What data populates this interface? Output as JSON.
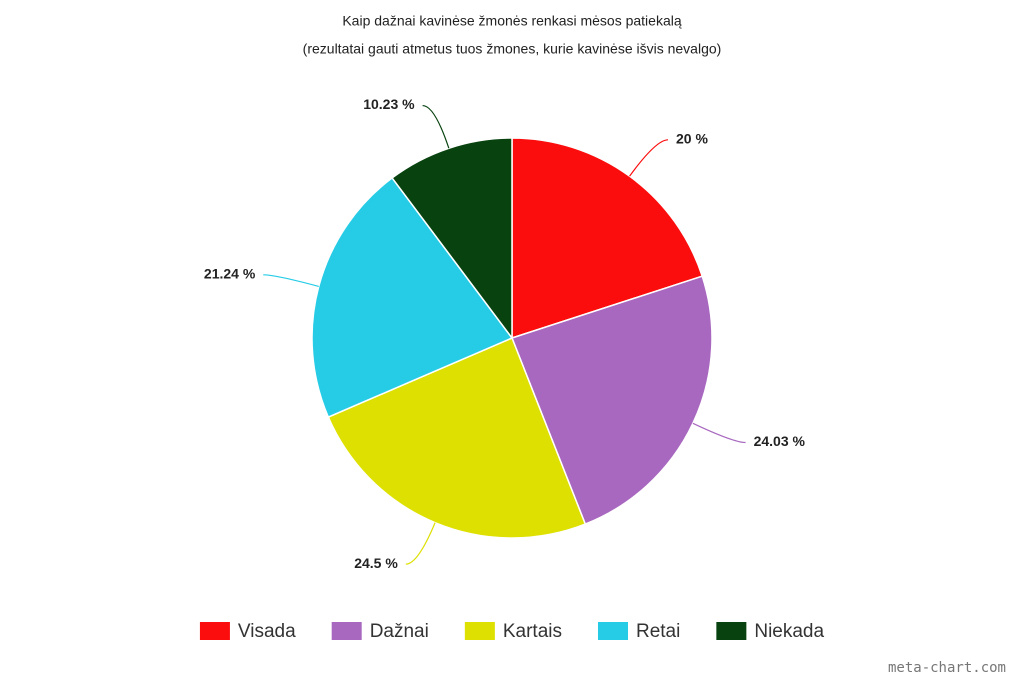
{
  "chart_data": {
    "type": "pie",
    "title": "Kaip dažnai kavinėse žmonės renkasi mėsos patiekalą",
    "subtitle": "(rezultatai gauti atmetus tuos žmones, kurie kavinėse išvis nevalgo)",
    "categories": [
      "Visada",
      "Dažnai",
      "Kartais",
      "Retai",
      "Niekada"
    ],
    "values": [
      20,
      24.03,
      24.5,
      21.24,
      10.23
    ],
    "value_labels": [
      "20 %",
      "24.03 %",
      "24.5 %",
      "21.24 %",
      "10.23 %"
    ],
    "colors": [
      "#fb0d0d",
      "#a868bf",
      "#dde000",
      "#26cce6",
      "#08420f"
    ],
    "legend": "bottom"
  },
  "watermark": "meta-chart.com"
}
